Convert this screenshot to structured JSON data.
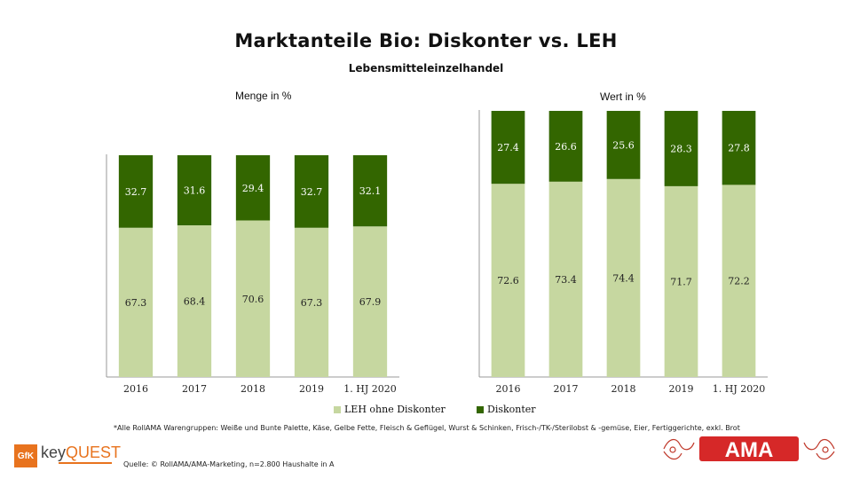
{
  "header": {
    "title": "Marktanteile Bio: Diskonter vs. LEH",
    "subtitle": "Lebensmitteleinzelhandel"
  },
  "legend": {
    "leh_label": "LEH ohne Diskonter",
    "diskonter_label": "Diskonter"
  },
  "footnote": "*Alle RollAMA Warengruppen: Weiße und Bunte Palette, Käse, Gelbe Fette, Fleisch & Geflügel, Wurst & Schinken, Frisch-/TK-/Sterilobst & -gemüse, Eier, Fertiggerichte, exkl. Brot",
  "source": "Quelle: © RollAMA/AMA-Marketing, n=2.800 Haushalte in A",
  "logos": {
    "gfk": "GfK",
    "keyquest": "keyQUEST",
    "ama": "AMA"
  },
  "colors": {
    "diskonter": "#336600",
    "leh": "#c6d7a0"
  },
  "chart_data": [
    {
      "type": "bar",
      "stacked": true,
      "title": "Menge in %",
      "categories": [
        "2016",
        "2017",
        "2018",
        "2019",
        "1. HJ 2020"
      ],
      "series": [
        {
          "name": "LEH ohne Diskonter",
          "values": [
            67.3,
            68.4,
            70.6,
            67.3,
            67.9
          ],
          "color": "#c6d7a0"
        },
        {
          "name": "Diskonter",
          "values": [
            32.7,
            31.6,
            29.4,
            32.7,
            32.1
          ],
          "color": "#336600"
        }
      ],
      "ylim": [
        0,
        100
      ],
      "grid": false
    },
    {
      "type": "bar",
      "stacked": true,
      "title": "Wert in %",
      "categories": [
        "2016",
        "2017",
        "2018",
        "2019",
        "1. HJ 2020"
      ],
      "series": [
        {
          "name": "LEH ohne Diskonter",
          "values": [
            72.6,
            73.4,
            74.4,
            71.7,
            72.2
          ],
          "color": "#c6d7a0"
        },
        {
          "name": "Diskonter",
          "values": [
            27.4,
            26.6,
            25.6,
            28.3,
            27.8
          ],
          "color": "#336600"
        }
      ],
      "ylim": [
        0,
        100
      ],
      "grid": false
    }
  ]
}
